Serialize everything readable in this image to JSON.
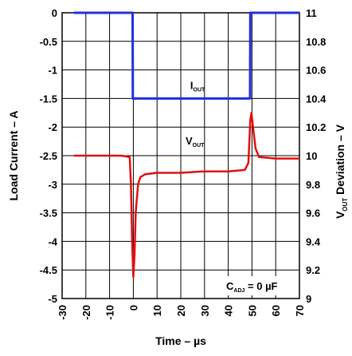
{
  "chart_data": {
    "type": "line",
    "x_axis": {
      "label": "Time – µs",
      "lim": [
        -30,
        70
      ],
      "ticks": [
        -30,
        -20,
        -10,
        0,
        10,
        20,
        30,
        40,
        50,
        60,
        70
      ],
      "tick_labels": [
        "-30",
        "-20",
        "-10",
        "0",
        "10",
        "20",
        "30",
        "40",
        "50",
        "60",
        "70"
      ]
    },
    "y_left": {
      "label": "Load Current – A",
      "lim": [
        -5,
        0
      ],
      "ticks": [
        0,
        -0.5,
        -1,
        -1.5,
        -2,
        -2.5,
        -3,
        -3.5,
        -4,
        -4.5,
        -5
      ],
      "tick_labels": [
        "0",
        "-0.5",
        "-1",
        "-1.5",
        "-2",
        "-2.5",
        "-3",
        "-3.5",
        "-4",
        "-4.5",
        "-5"
      ]
    },
    "y_right": {
      "label_main": "V",
      "label_sub": "OUT",
      "label_rest": " Deviation – V",
      "lim": [
        9,
        11
      ],
      "ticks": [
        11,
        10.8,
        10.6,
        10.4,
        10.2,
        10,
        9.8,
        9.6,
        9.4,
        9.2,
        9
      ],
      "tick_labels": [
        "11",
        "10.8",
        "10.6",
        "10.4",
        "10.2",
        "10",
        "9.8",
        "9.6",
        "9.4",
        "9.2",
        "9"
      ]
    },
    "grid": true,
    "series": [
      {
        "name_main": "I",
        "name_sub": "OUT",
        "axis": "left",
        "color": "#1f2fe0",
        "points": [
          [
            -25,
            0
          ],
          [
            -0.3,
            0
          ],
          [
            -0.2,
            -1.5
          ],
          [
            49.2,
            -1.5
          ],
          [
            49.3,
            0
          ],
          [
            70,
            0
          ]
        ]
      },
      {
        "name_main": "V",
        "name_sub": "OUT",
        "axis": "right",
        "color": "#e01010",
        "points": [
          [
            -25,
            10.0
          ],
          [
            -15,
            10.0
          ],
          [
            -5,
            10.0
          ],
          [
            -1.5,
            9.99
          ],
          [
            -1,
            9.8
          ],
          [
            -0.5,
            9.4
          ],
          [
            0,
            9.15
          ],
          [
            0.5,
            9.3
          ],
          [
            1,
            9.6
          ],
          [
            2,
            9.8
          ],
          [
            3,
            9.85
          ],
          [
            5,
            9.87
          ],
          [
            10,
            9.88
          ],
          [
            20,
            9.88
          ],
          [
            30,
            9.89
          ],
          [
            40,
            9.89
          ],
          [
            47,
            9.9
          ],
          [
            48.5,
            9.95
          ],
          [
            49.3,
            10.25
          ],
          [
            49.8,
            10.3
          ],
          [
            50.3,
            10.22
          ],
          [
            51.5,
            10.05
          ],
          [
            53,
            9.99
          ],
          [
            60,
            9.98
          ],
          [
            70,
            9.98
          ]
        ]
      }
    ],
    "annotation": {
      "main": "C",
      "sub": "ADJ",
      "rest": " = 0 µF"
    }
  }
}
